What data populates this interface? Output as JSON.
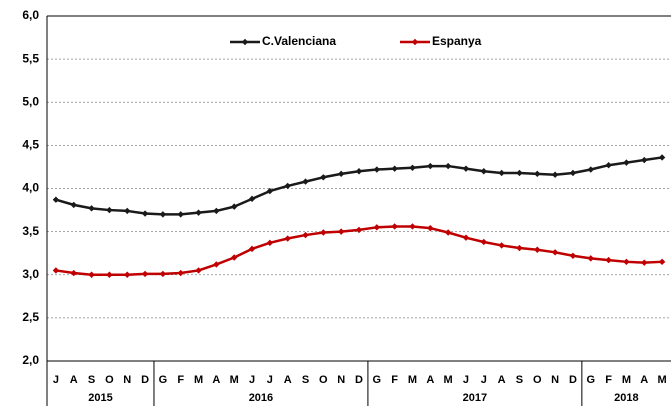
{
  "chart_data": {
    "type": "line",
    "categories": [
      "J",
      "A",
      "S",
      "O",
      "N",
      "D",
      "G",
      "F",
      "M",
      "A",
      "M",
      "J",
      "J",
      "A",
      "S",
      "O",
      "N",
      "D",
      "G",
      "F",
      "M",
      "A",
      "M",
      "J",
      "J",
      "A",
      "S",
      "O",
      "N",
      "D",
      "G",
      "F",
      "M",
      "A",
      "M"
    ],
    "years": [
      "2015",
      "2015",
      "2015",
      "2015",
      "2015",
      "2015",
      "2016",
      "2016",
      "2016",
      "2016",
      "2016",
      "2016",
      "2016",
      "2016",
      "2016",
      "2016",
      "2016",
      "2016",
      "2017",
      "2017",
      "2017",
      "2017",
      "2017",
      "2017",
      "2017",
      "2017",
      "2017",
      "2017",
      "2017",
      "2017",
      "2018",
      "2018",
      "2018",
      "2018",
      "2018"
    ],
    "series": [
      {
        "name": "C.Valenciana",
        "color": "#1a1a1a",
        "values": [
          3.87,
          3.81,
          3.77,
          3.75,
          3.74,
          3.71,
          3.7,
          3.7,
          3.72,
          3.74,
          3.79,
          3.88,
          3.97,
          4.03,
          4.08,
          4.13,
          4.17,
          4.2,
          4.22,
          4.23,
          4.24,
          4.26,
          4.26,
          4.23,
          4.2,
          4.18,
          4.18,
          4.17,
          4.16,
          4.18,
          4.22,
          4.27,
          4.3,
          4.33,
          4.36
        ]
      },
      {
        "name": "Espanya",
        "color": "#c00000",
        "values": [
          3.05,
          3.02,
          3.0,
          3.0,
          3.0,
          3.01,
          3.01,
          3.02,
          3.05,
          3.12,
          3.2,
          3.3,
          3.37,
          3.42,
          3.46,
          3.49,
          3.5,
          3.52,
          3.55,
          3.56,
          3.56,
          3.54,
          3.49,
          3.43,
          3.38,
          3.34,
          3.31,
          3.29,
          3.26,
          3.22,
          3.19,
          3.17,
          3.15,
          3.14,
          3.15
        ]
      }
    ],
    "ylim": [
      2,
      6
    ],
    "yticks": [
      {
        "value": 2,
        "label": "2,0"
      },
      {
        "value": 2.5,
        "label": "2,5"
      },
      {
        "value": 3,
        "label": "3,0"
      },
      {
        "value": 3.5,
        "label": "3,5"
      },
      {
        "value": 4,
        "label": "4,0"
      },
      {
        "value": 4.5,
        "label": "4,5"
      },
      {
        "value": 5,
        "label": "5,0"
      },
      {
        "value": 5.5,
        "label": "5,5"
      },
      {
        "value": 6,
        "label": "6,0"
      }
    ],
    "grid": true,
    "legend": "top"
  }
}
